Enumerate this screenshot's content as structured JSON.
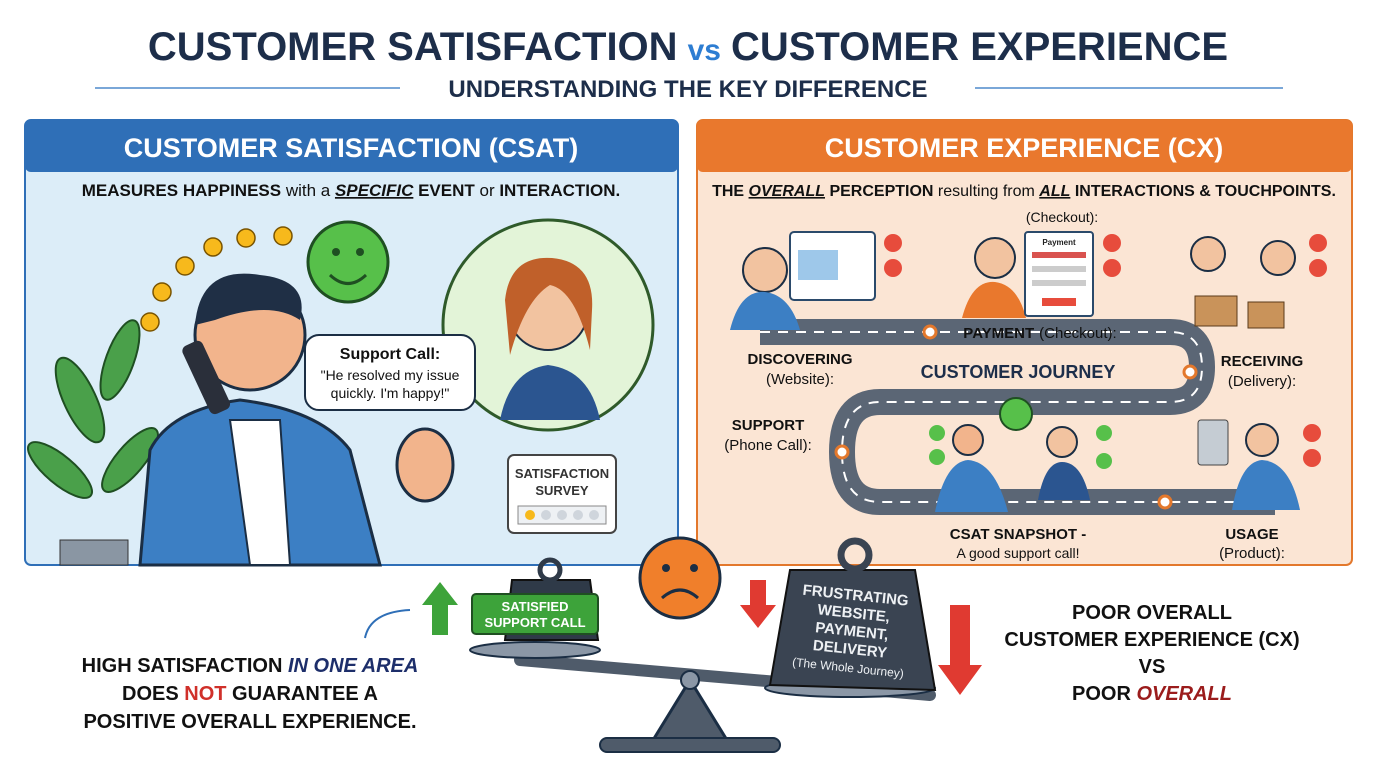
{
  "header": {
    "title": {
      "left": "CUSTOMER SATISFACTION",
      "vs": "vs",
      "right": "CUSTOMER EXPERIENCE"
    },
    "subtitle": "UNDERSTANDING THE KEY DIFFERENCE"
  },
  "csat": {
    "header": "CUSTOMER SATISFACTION (CSAT)",
    "description": [
      "MEASURES HAPPINESS",
      " with a ",
      "SPECIFIC",
      " EVENT",
      " or ",
      "INTERACTION."
    ],
    "bubble_title": "Support Call:",
    "bubble_lines": [
      "\"He resolved my issue",
      "quickly. I'm happy!\""
    ],
    "survey": [
      "SATISFACTION",
      "SURVEY"
    ]
  },
  "cx": {
    "header": "CUSTOMER EXPERIENCE (CX)",
    "description": [
      "THE ",
      "OVERALL",
      " PERCEPTION",
      " resulting from ",
      "ALL",
      " INTERACTIONS & TOUCHPOINTS."
    ],
    "checkout_label": "(Checkout):",
    "form_title": "Payment",
    "stages": [
      {
        "name": "PAYMENT",
        "detail": "(Checkout):"
      },
      {
        "name": "DISCOVERING",
        "detail": "(Website):"
      },
      {
        "name": "RECEIVING",
        "detail": "(Delivery):"
      },
      {
        "name": "SUPPORT",
        "detail": "(Phone Call):"
      },
      {
        "name": "USAGE",
        "detail": "(Product):"
      }
    ],
    "journey": "CUSTOMER JOURNEY",
    "snapshot": {
      "title": "CSAT SNAPSHOT -",
      "detail": "A good support call!"
    }
  },
  "scale": {
    "left_weight": [
      "SATISFIED",
      "SUPPORT CALL"
    ],
    "right_weight": [
      "FRUSTRATING",
      "WEBSITE,",
      "PAYMENT,",
      "DELIVERY",
      "(The Whole Journey)"
    ]
  },
  "conclusion": [
    [
      "HIGH SATISFACTION ",
      "IN ONE AREA"
    ],
    [
      "DOES ",
      "NOT",
      " GUARANTEE A"
    ],
    [
      "POSITIVE OVERALL EXPERIENCE."
    ]
  ],
  "result": [
    [
      "POOR OVERALL"
    ],
    [
      "CUSTOMER EXPERIENCE (CX)"
    ],
    [
      "VS"
    ],
    [
      "POOR ",
      "OVERALL"
    ]
  ]
}
